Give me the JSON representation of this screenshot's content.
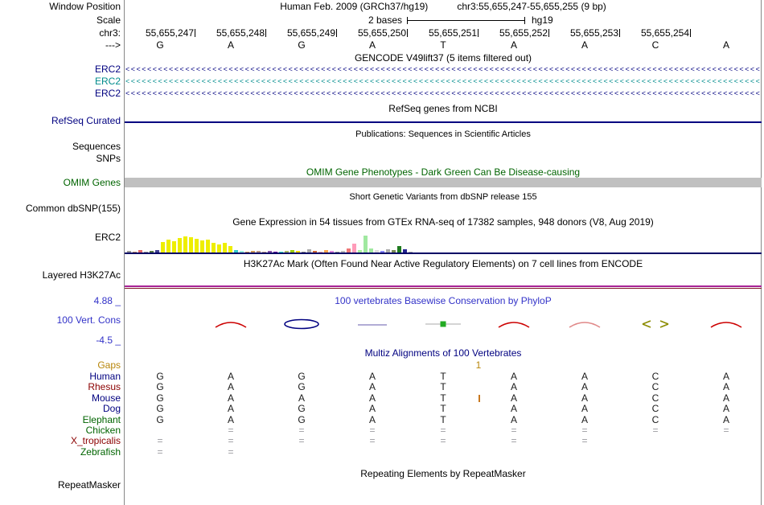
{
  "colors": {
    "navy": "#000080",
    "teal": "#008C8C",
    "dark_green": "#006400",
    "dark_red": "#8B0000",
    "gap_orange": "#C87820",
    "gaps_label": "#B8860B",
    "phylop_blue": "#3232C8",
    "omim_bar_gray": "#C0C0C0",
    "h3k27ac_purple": "#A82296",
    "h3k27ac_maroon": "#7A1022",
    "gtex_baseline": "#000064",
    "border_gray": "#888888",
    "base_black": "#1A1A1A",
    "eq_gray": "#9A9AA0"
  },
  "window": {
    "left_label": "Window Position",
    "assembly": "Human Feb. 2009 (GRCh37/hg19)",
    "position": "chr3:55,655,247-55,655,255 (9 bp)"
  },
  "scale": {
    "left_label": "Scale",
    "bar_label": "2 bases",
    "assembly_label": "hg19"
  },
  "ruler": {
    "chrom_label": "chr3:",
    "strand_label": "--->",
    "coordinates": [
      "55,655,247",
      "55,655,248",
      "55,655,249",
      "55,655,250",
      "55,655,251",
      "55,655,252",
      "55,655,253",
      "55,655,254"
    ],
    "bases": [
      "G",
      "A",
      "G",
      "A",
      "T",
      "A",
      "A",
      "C",
      "A"
    ]
  },
  "gencode": {
    "header": "GENCODE V49lift37 (5 items filtered out)",
    "arrow_char": "<",
    "tracks": [
      {
        "label": "ERC2",
        "color": "navy"
      },
      {
        "label": "ERC2",
        "color": "teal"
      },
      {
        "label": "ERC2",
        "color": "navy"
      }
    ]
  },
  "refseq": {
    "header": "RefSeq genes from NCBI",
    "label": "RefSeq Curated"
  },
  "publications": {
    "header": "Publications: Sequences in Scientific Articles",
    "labels": [
      "Sequences",
      "SNPs"
    ]
  },
  "omim": {
    "header": "OMIM Gene Phenotypes - Dark Green Can Be Disease-causing",
    "label": "OMIM Genes"
  },
  "dbsnp": {
    "header": "Short Genetic Variants from dbSNP release 155",
    "label": "Common dbSNP(155)"
  },
  "gtex": {
    "header": "Gene Expression in 54 tissues from GTEx RNA-seq of 17382 samples, 948 donors (V8, Aug 2019)",
    "label": "ERC2",
    "bars": [
      [
        2,
        "#999999"
      ],
      [
        1,
        "#B98A6A"
      ],
      [
        3,
        "#E06666"
      ],
      [
        1,
        "#999999"
      ],
      [
        2,
        "#557744"
      ],
      [
        3,
        "#404090"
      ],
      [
        13,
        "#EEEE00"
      ],
      [
        16,
        "#EEEE00"
      ],
      [
        14,
        "#EEEE00"
      ],
      [
        18,
        "#EEEE00"
      ],
      [
        20,
        "#EEEE00"
      ],
      [
        19,
        "#EEEE00"
      ],
      [
        17,
        "#EEEE00"
      ],
      [
        15,
        "#EEEE00"
      ],
      [
        16,
        "#EEEE00"
      ],
      [
        12,
        "#EEEE00"
      ],
      [
        10,
        "#EEEE00"
      ],
      [
        12,
        "#EEEE00"
      ],
      [
        8,
        "#EEEE00"
      ],
      [
        3,
        "#33CCCC"
      ],
      [
        2,
        "#99EEDD"
      ],
      [
        1,
        "#CC9955"
      ],
      [
        2,
        "#CC9955"
      ],
      [
        2,
        "#BB9988"
      ],
      [
        1,
        "#BB9988"
      ],
      [
        2,
        "#8855AA"
      ],
      [
        1,
        "#660099"
      ],
      [
        1,
        "#33FFCC"
      ],
      [
        2,
        "#AABB66"
      ],
      [
        3,
        "#99CC00"
      ],
      [
        2,
        "#FFD700"
      ],
      [
        1,
        "#888888"
      ],
      [
        4,
        "#AAAAAA"
      ],
      [
        2,
        "#CC6633"
      ],
      [
        1,
        "#FFAAAA"
      ],
      [
        3,
        "#FFA54F"
      ],
      [
        2,
        "#DD88DD"
      ],
      [
        1,
        "#999999"
      ],
      [
        2,
        "#BBBBBB"
      ],
      [
        5,
        "#EE7777"
      ],
      [
        11,
        "#FF9BB9"
      ],
      [
        3,
        "#AAF0A0"
      ],
      [
        21,
        "#A0E8A0"
      ],
      [
        5,
        "#A0E8A0"
      ],
      [
        3,
        "#DDDDDD"
      ],
      [
        2,
        "#8888FF"
      ],
      [
        4,
        "#AAAAAA"
      ],
      [
        3,
        "#778855"
      ],
      [
        8,
        "#1F7A1F"
      ],
      [
        4,
        "#24248F"
      ],
      [
        1,
        "#AAAAAA"
      ],
      [
        0,
        "#000000"
      ],
      [
        0,
        "#000000"
      ],
      [
        0,
        "#000000"
      ]
    ]
  },
  "h3k27ac": {
    "header": "H3K27Ac Mark (Often Found Near Active Regulatory Elements) on 7 cell lines from ENCODE",
    "label": "Layered H3K27Ac"
  },
  "phylop": {
    "header": "100 vertebrates Basewise Conservation by PhyloP",
    "label": "100 Vert. Cons",
    "max": "4.88 _",
    "min": "-4.5 _",
    "glyphs": [
      {
        "col": 2,
        "type": "arc",
        "color": "#CC0000"
      },
      {
        "col": 3,
        "type": "ellipse",
        "color": "#000080"
      },
      {
        "col": 4,
        "type": "flat",
        "color": "#9890C8"
      },
      {
        "col": 5,
        "type": "square",
        "color": "#22AA22",
        "line_color": "#AAAAAA"
      },
      {
        "col": 6,
        "type": "arc",
        "color": "#CC0000"
      },
      {
        "col": 7,
        "type": "arc",
        "color": "#E08888"
      },
      {
        "col": 8,
        "type": "chevrons",
        "color": "#8B8B00"
      },
      {
        "col": 9,
        "type": "arc",
        "color": "#CC0000"
      }
    ]
  },
  "multiz": {
    "header": "Multiz Alignments of 100 Vertebrates",
    "gaps_label": "Gaps",
    "gap_value": "1",
    "rows": [
      {
        "name": "Human",
        "color": "navy",
        "cells": [
          "G",
          "A",
          "G",
          "A",
          "T",
          "A",
          "A",
          "C",
          "A"
        ]
      },
      {
        "name": "Rhesus",
        "color": "dark_red",
        "cells": [
          "G",
          "A",
          "G",
          "A",
          "T",
          "A",
          "A",
          "C",
          "A"
        ]
      },
      {
        "name": "Mouse",
        "color": "navy",
        "cells": [
          "G",
          "A",
          "A",
          "A",
          "T",
          "A",
          "A",
          "C",
          "A"
        ],
        "insertion_after": 5
      },
      {
        "name": "Dog",
        "color": "navy",
        "cells": [
          "G",
          "A",
          "G",
          "A",
          "T",
          "A",
          "A",
          "C",
          "A"
        ]
      },
      {
        "name": "Elephant",
        "color": "dark_green",
        "cells": [
          "G",
          "A",
          "G",
          "A",
          "T",
          "A",
          "A",
          "C",
          "A"
        ]
      },
      {
        "name": "Chicken",
        "color": "dark_green",
        "cells": [
          "",
          "=",
          "=",
          "=",
          "=",
          "=",
          "=",
          "=",
          "="
        ]
      },
      {
        "name": "X_tropicalis",
        "color": "dark_red",
        "cells": [
          "=",
          "=",
          "=",
          "=",
          "=",
          "=",
          "=",
          "",
          ""
        ]
      },
      {
        "name": "Zebrafish",
        "color": "dark_green",
        "cells": [
          "=",
          "=",
          "",
          "",
          "",
          "",
          "",
          "",
          ""
        ]
      }
    ]
  },
  "repeat": {
    "header": "Repeating Elements by RepeatMasker",
    "label": "RepeatMasker"
  }
}
